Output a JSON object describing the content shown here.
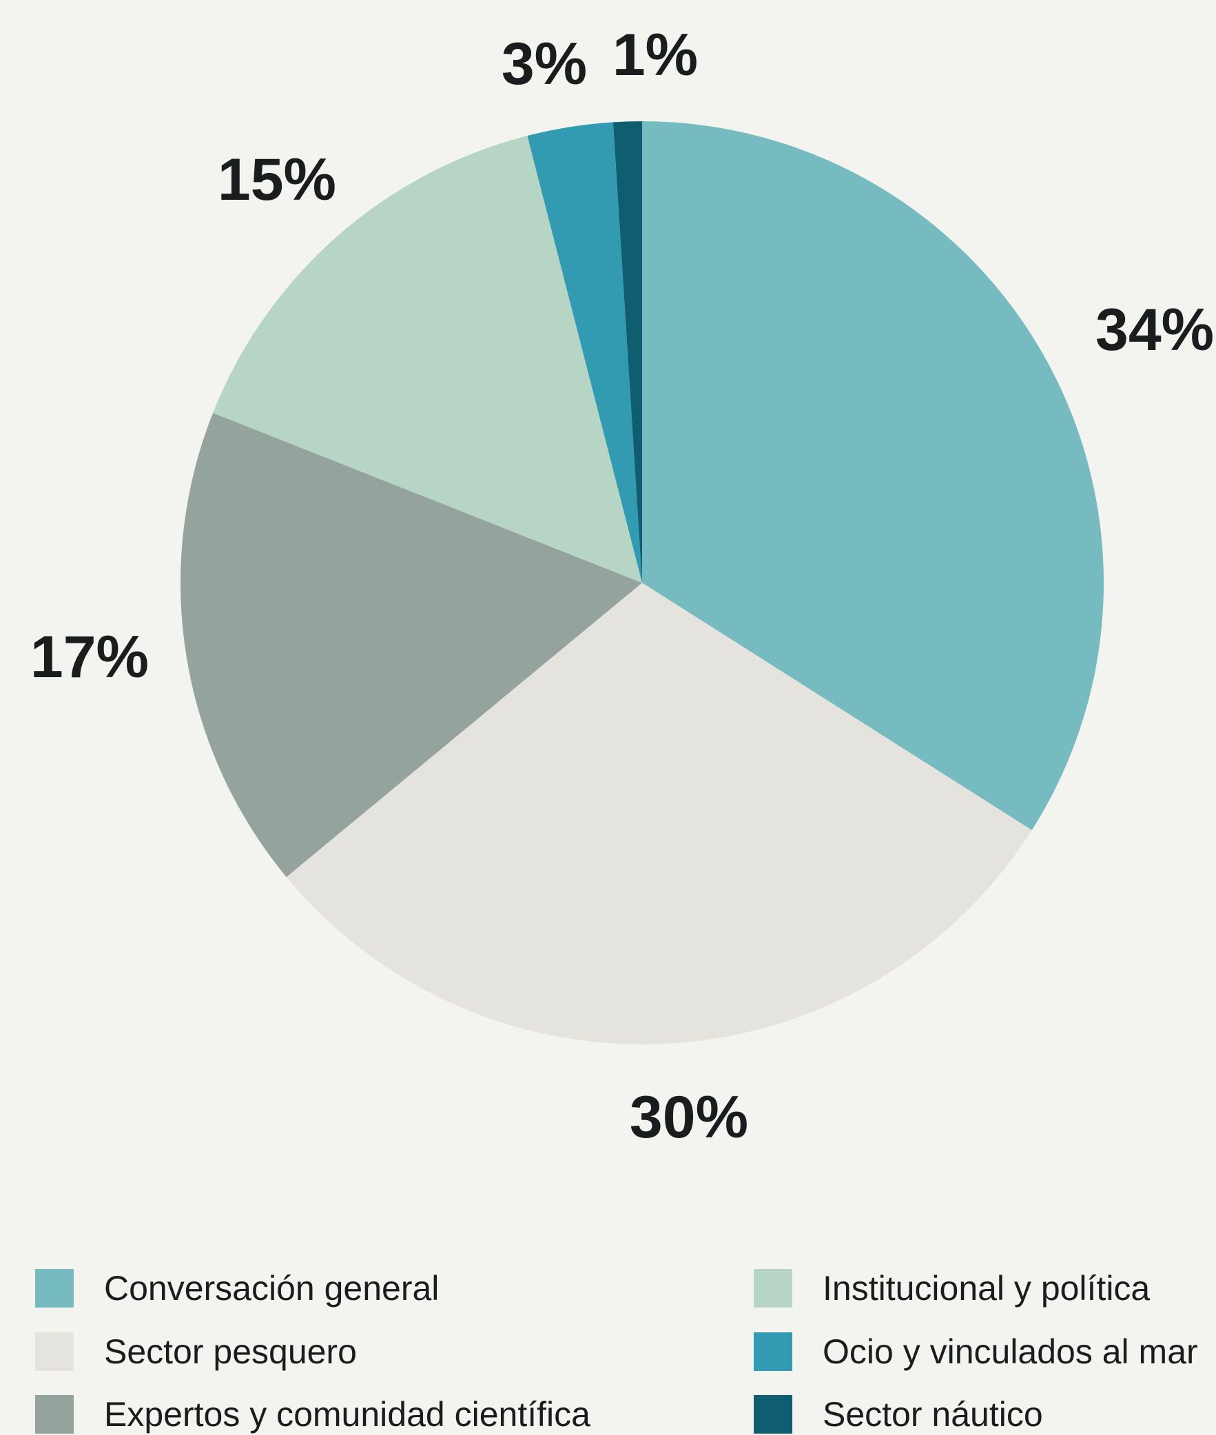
{
  "chart_data": {
    "type": "pie",
    "start": "top",
    "direction": "clockwise",
    "slices": [
      {
        "name": "Conversación general",
        "value": 34,
        "label": "34%",
        "color": "#75bbbf"
      },
      {
        "name": "Sector pesquero",
        "value": 30,
        "label": "30%",
        "color": "#e5e3de"
      },
      {
        "name": "Expertos y comunidad científica",
        "value": 17,
        "label": "17%",
        "color": "#94a39e"
      },
      {
        "name": "Institucional y política",
        "value": 15,
        "label": "15%",
        "color": "#b7d5c5"
      },
      {
        "name": "Ocio y vinculados al mar",
        "value": 3,
        "label": "3%",
        "color": "#339bb1"
      },
      {
        "name": "Sector náutico",
        "value": 1,
        "label": "1%",
        "color": "#0f5e70"
      }
    ],
    "legend": {
      "placement": "bottom",
      "items": [
        {
          "label": "Conversación general",
          "color": "#75bbbf"
        },
        {
          "label": "Sector pesquero",
          "color": "#e5e3de"
        },
        {
          "label": "Expertos y comunidad científica",
          "color": "#94a39e"
        },
        {
          "label": "Institucional y política",
          "color": "#b7d5c5"
        },
        {
          "label": "Ocio y vinculados al mar",
          "color": "#339bb1"
        },
        {
          "label": "Sector náutico",
          "color": "#0f5e70"
        }
      ]
    }
  }
}
